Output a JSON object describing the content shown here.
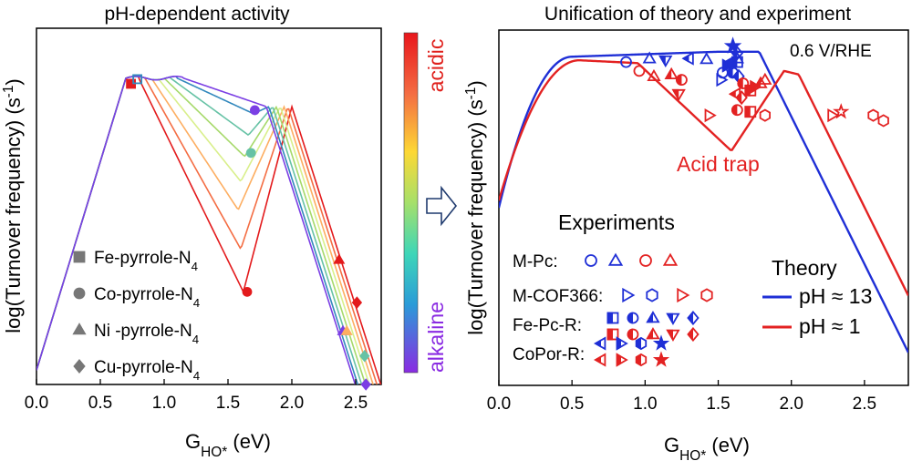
{
  "chart_data": [
    {
      "type": "line",
      "title": "pH-dependent activity",
      "xlabel": "G",
      "xlabel_sub": "HO*",
      "xlabel_unit": " (eV)",
      "ylabel": "log(Turnover frequency) (s",
      "ylabel_sup": "-1",
      "ylabel_end": ")",
      "xlim": [
        0,
        2.7
      ],
      "xticks": [
        "0.0",
        "0.5",
        "1.0",
        "1.5",
        "2.0",
        "2.5"
      ],
      "xtick_values": [
        0,
        0.5,
        1.0,
        1.5,
        2.0,
        2.5
      ],
      "colorbar": {
        "top": "acidic",
        "bottom": "alkaline"
      },
      "legend": [
        {
          "marker": "square",
          "main": "Fe-pyrrole-N",
          "sub": "4"
        },
        {
          "marker": "circle",
          "main": "Co-pyrrole-N",
          "sub": "4"
        },
        {
          "marker": "triangle",
          "main": "Ni -pyrrole-N",
          "sub": "4"
        },
        {
          "marker": "diamond",
          "main": "Cu-pyrrole-N",
          "sub": "4"
        }
      ],
      "series": [
        {
          "color": "#e31a1c",
          "min": [
            1.62,
            0.26
          ],
          "peak2": [
            2.0,
            0.78
          ]
        },
        {
          "color": "#f46d43",
          "min": [
            1.6,
            0.38
          ],
          "peak2": [
            1.97,
            0.78
          ]
        },
        {
          "color": "#fdae61",
          "min": [
            1.58,
            0.49
          ],
          "peak2": [
            1.94,
            0.78
          ]
        },
        {
          "color": "#d9ef8b",
          "min": [
            1.6,
            0.57
          ],
          "peak2": [
            1.91,
            0.78
          ]
        },
        {
          "color": "#a6d96a",
          "min": [
            1.63,
            0.64
          ],
          "peak2": [
            1.88,
            0.78
          ]
        },
        {
          "color": "#66c2a5",
          "min": [
            1.66,
            0.7
          ],
          "peak2": [
            1.85,
            0.78
          ]
        },
        {
          "color": "#3288bd",
          "min": [
            1.7,
            0.76
          ],
          "peak2": [
            1.82,
            0.78
          ]
        },
        {
          "color": "#7b3fe4",
          "min": [
            1.72,
            0.79
          ],
          "peak2": [
            1.8,
            0.78
          ]
        }
      ],
      "markers": [
        {
          "shape": "square",
          "x": 0.74,
          "y": 0.844,
          "color": "#e31a1c"
        },
        {
          "shape": "square-open",
          "x": 0.79,
          "y": 0.857,
          "color": "#3288bd"
        },
        {
          "shape": "circle",
          "x": 1.65,
          "y": 0.26,
          "color": "#e31a1c"
        },
        {
          "shape": "circle",
          "x": 1.68,
          "y": 0.65,
          "color": "#66c2a5"
        },
        {
          "shape": "circle",
          "x": 1.71,
          "y": 0.77,
          "color": "#7b3fe4"
        },
        {
          "shape": "triangle",
          "x": 2.37,
          "y": 0.35,
          "color": "#e31a1c"
        },
        {
          "shape": "triangle",
          "x": 2.4,
          "y": 0.15,
          "color": "#7b3fe4"
        },
        {
          "shape": "diamond",
          "x": 2.51,
          "y": 0.23,
          "color": "#e31a1c"
        },
        {
          "shape": "diamond",
          "x": 2.57,
          "y": 0.08,
          "color": "#66c2a5"
        },
        {
          "shape": "diamond",
          "x": 2.58,
          "y": 0.0,
          "color": "#7b3fe4"
        },
        {
          "shape": "triangle",
          "x": 2.43,
          "y": 0.15,
          "color": "#fdae61"
        }
      ]
    },
    {
      "type": "line",
      "title": "Unification of theory and experiment",
      "xlabel": "G",
      "xlabel_sub": "HO*",
      "xlabel_unit": " (eV)",
      "ylabel": "log(Turnover frequency) (s",
      "ylabel_sup": "-1",
      "ylabel_end": ")",
      "xlim": [
        0,
        2.8
      ],
      "xticks": [
        "0.0",
        "0.5",
        "1.0",
        "1.5",
        "2.0",
        "2.5"
      ],
      "xtick_values": [
        0,
        0.5,
        1.0,
        1.5,
        2.0,
        2.5
      ],
      "potential": "0.6 V/RHE",
      "annotation": "Acid trap",
      "experiments_title": "Experiments",
      "experiments": [
        {
          "label": "M-Pc:",
          "symbols": [
            "circle-open-blue",
            "triangle-open-blue",
            "circle-open-red",
            "triangle-open-red"
          ]
        },
        {
          "label": "M-COF366:",
          "symbols": [
            "tri-right-open-blue",
            "hex-open-blue",
            "tri-right-open-red",
            "hex-open-red"
          ]
        },
        {
          "label": "Fe-Pc-R:",
          "symbols": [
            "square-half-blue",
            "circle-half-blue",
            "triangle-half-blue",
            "tri-down-half-blue",
            "diamond-half-blue",
            "square-half-red",
            "circle-half-red",
            "triangle-half-red",
            "tri-down-half-red",
            "diamond-half-red"
          ]
        },
        {
          "label": "CoPor-R:",
          "symbols": [
            "tri-left-half-blue",
            "tri-right-half-blue",
            "hex-half-blue",
            "star-blue",
            "tri-left-half-red",
            "tri-right-half-red",
            "hex-half-red",
            "star-red"
          ]
        }
      ],
      "theory_title": "Theory",
      "series": [
        {
          "name": "pH ≈ 13",
          "color": "#1f2fd6"
        },
        {
          "name": "pH ≈ 1",
          "color": "#e32222"
        }
      ]
    }
  ]
}
